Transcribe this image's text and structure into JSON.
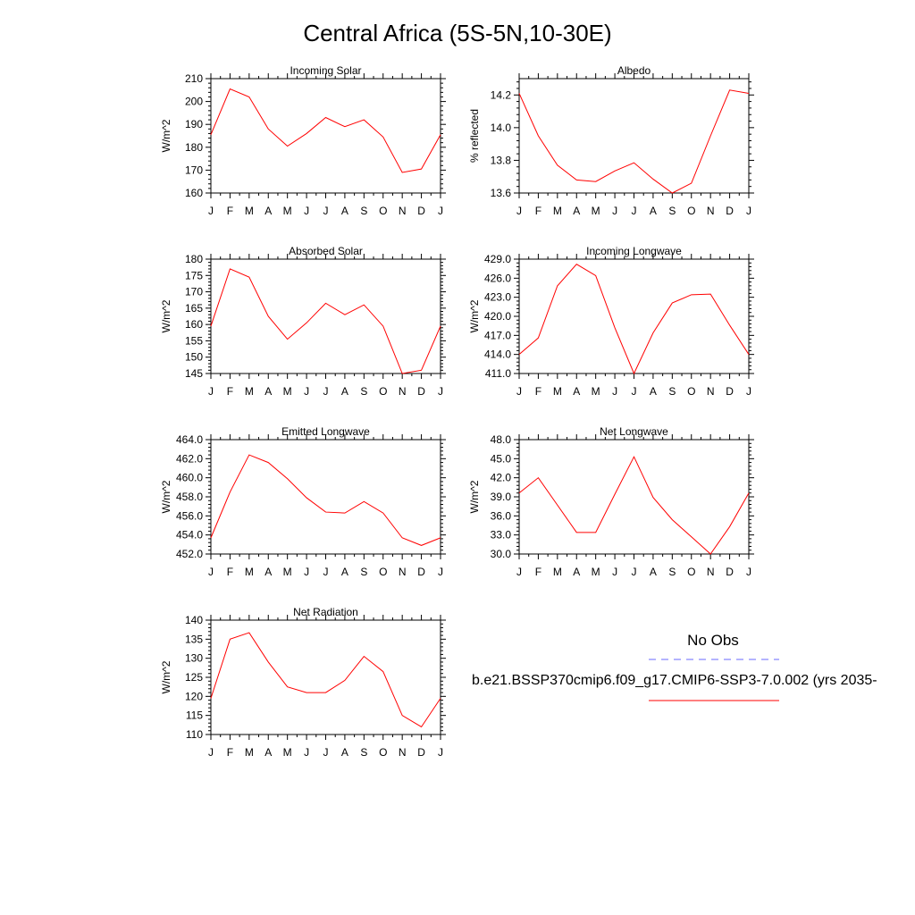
{
  "title": "Central Africa (5S-5N,10-30E)",
  "legend": {
    "obs_label": "No Obs",
    "obs_color": "#6a6aff",
    "model_label": "b.e21.BSSP370cmip6.f09_g17.CMIP6-SSP3-7.0.002 (yrs 2035-",
    "model_color": "#ff0000"
  },
  "chart_data": [
    {
      "type": "line",
      "title": "Incoming Solar",
      "xlabel": "",
      "ylabel": "W/m^2",
      "categories": [
        "J",
        "F",
        "M",
        "A",
        "M",
        "J",
        "J",
        "A",
        "S",
        "O",
        "N",
        "D",
        "J"
      ],
      "ylim": [
        160,
        210
      ],
      "yticks": [
        "160",
        "170",
        "180",
        "190",
        "200",
        "210"
      ],
      "series": [
        {
          "values": [
            185.5,
            205.5,
            202,
            188,
            180.5,
            186,
            193,
            189,
            192,
            184.5,
            169,
            170.5,
            185.5
          ]
        }
      ]
    },
    {
      "type": "line",
      "title": "Albedo",
      "xlabel": "",
      "ylabel": "% reflected",
      "categories": [
        "J",
        "F",
        "M",
        "A",
        "M",
        "J",
        "J",
        "A",
        "S",
        "O",
        "N",
        "D",
        "J"
      ],
      "ylim": [
        13.6,
        14.3
      ],
      "yticks": [
        "13.6",
        "13.8",
        "14.0",
        "14.2"
      ],
      "series": [
        {
          "values": [
            14.21,
            13.95,
            13.77,
            13.68,
            13.67,
            13.735,
            13.785,
            13.685,
            13.6,
            13.66,
            13.95,
            14.23,
            14.21
          ]
        }
      ]
    },
    {
      "type": "line",
      "title": "Absorbed Solar",
      "xlabel": "",
      "ylabel": "W/m^2",
      "categories": [
        "J",
        "F",
        "M",
        "A",
        "M",
        "J",
        "J",
        "A",
        "S",
        "O",
        "N",
        "D",
        "J"
      ],
      "ylim": [
        145,
        180
      ],
      "yticks": [
        "145",
        "150",
        "155",
        "160",
        "165",
        "170",
        "175",
        "180"
      ],
      "series": [
        {
          "values": [
            159.5,
            177,
            174.5,
            162.5,
            155.5,
            160.5,
            166.5,
            163,
            166,
            159.5,
            145,
            146,
            159.5
          ]
        }
      ]
    },
    {
      "type": "line",
      "title": "Incoming Longwave",
      "xlabel": "",
      "ylabel": "W/m^2",
      "categories": [
        "J",
        "F",
        "M",
        "A",
        "M",
        "J",
        "J",
        "A",
        "S",
        "O",
        "N",
        "D",
        "J"
      ],
      "ylim": [
        411,
        429
      ],
      "yticks": [
        "411.0",
        "414.0",
        "417.0",
        "420.0",
        "423.0",
        "426.0",
        "429.0"
      ],
      "series": [
        {
          "values": [
            414,
            416.6,
            424.8,
            428.2,
            426.4,
            418.2,
            411,
            417.4,
            422.1,
            423.4,
            423.5,
            418.6,
            414
          ]
        }
      ]
    },
    {
      "type": "line",
      "title": "Emitted Longwave",
      "xlabel": "",
      "ylabel": "W/m^2",
      "categories": [
        "J",
        "F",
        "M",
        "A",
        "M",
        "J",
        "J",
        "A",
        "S",
        "O",
        "N",
        "D",
        "J"
      ],
      "ylim": [
        452,
        464
      ],
      "yticks": [
        "452.0",
        "454.0",
        "456.0",
        "458.0",
        "460.0",
        "462.0",
        "464.0"
      ],
      "series": [
        {
          "values": [
            453.7,
            458.5,
            462.4,
            461.6,
            459.9,
            457.9,
            456.4,
            456.3,
            457.5,
            456.3,
            453.7,
            452.9,
            453.7
          ]
        }
      ]
    },
    {
      "type": "line",
      "title": "Net Longwave",
      "xlabel": "",
      "ylabel": "W/m^2",
      "categories": [
        "J",
        "F",
        "M",
        "A",
        "M",
        "J",
        "J",
        "A",
        "S",
        "O",
        "N",
        "D",
        "J"
      ],
      "ylim": [
        30,
        48
      ],
      "yticks": [
        "30.0",
        "33.0",
        "36.0",
        "39.0",
        "42.0",
        "45.0",
        "48.0"
      ],
      "series": [
        {
          "values": [
            39.6,
            42,
            37.7,
            33.4,
            33.4,
            39.4,
            45.3,
            38.9,
            35.4,
            32.7,
            30,
            34.3,
            39.6
          ]
        }
      ]
    },
    {
      "type": "line",
      "title": "Net Radiation",
      "xlabel": "",
      "ylabel": "W/m^2",
      "categories": [
        "J",
        "F",
        "M",
        "A",
        "M",
        "J",
        "J",
        "A",
        "S",
        "O",
        "N",
        "D",
        "J"
      ],
      "ylim": [
        110,
        140
      ],
      "yticks": [
        "110",
        "115",
        "120",
        "125",
        "130",
        "135",
        "140"
      ],
      "series": [
        {
          "values": [
            119.5,
            135,
            136.7,
            129,
            122.5,
            121,
            121,
            124.2,
            130.5,
            126.5,
            115,
            112,
            119.5
          ]
        }
      ]
    }
  ]
}
